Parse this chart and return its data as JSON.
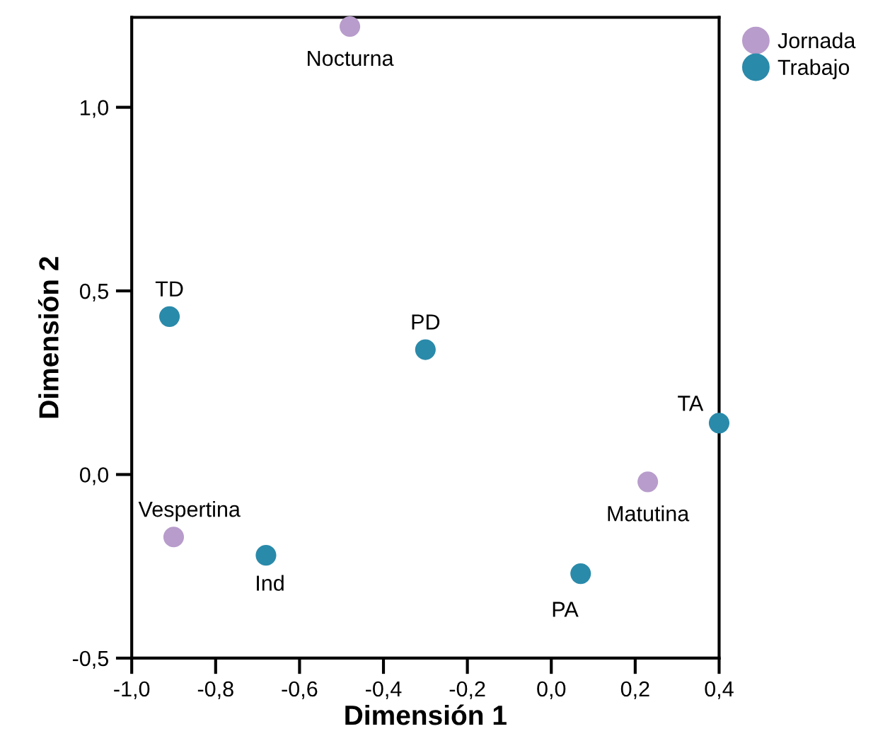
{
  "chart_data": {
    "type": "scatter",
    "xlabel": "Dimensión 1",
    "ylabel": "Dimensión 2",
    "series": [
      {
        "name": "Jornada",
        "color": "#b89ccb",
        "x": [
          -0.48,
          0.23,
          -0.9
        ],
        "values": [
          1.22,
          -0.02,
          -0.17
        ]
      },
      {
        "name": "Trabajo",
        "color": "#2a8aaa",
        "x": [
          -0.91,
          -0.3,
          0.4,
          -0.68,
          0.07
        ],
        "values": [
          0.43,
          0.34,
          0.14,
          -0.22,
          -0.27
        ]
      }
    ],
    "annotations": [
      {
        "text": "Nocturna",
        "x": -0.48,
        "y": 1.22
      },
      {
        "text": "Matutina",
        "x": 0.23,
        "y": -0.02
      },
      {
        "text": "Vespertina",
        "x": -0.9,
        "y": -0.17
      },
      {
        "text": "TD",
        "x": -0.91,
        "y": 0.43
      },
      {
        "text": "PD",
        "x": -0.3,
        "y": 0.34
      },
      {
        "text": "TA",
        "x": 0.4,
        "y": 0.14
      },
      {
        "text": "Ind",
        "x": -0.68,
        "y": -0.22
      },
      {
        "text": "PA",
        "x": 0.07,
        "y": -0.27
      }
    ],
    "xlim": [
      -1.0,
      0.4
    ],
    "ylim": [
      -0.5,
      1.245
    ],
    "xticks": [
      {
        "value": -1.0,
        "label": "-1,0"
      },
      {
        "value": -0.8,
        "label": "-0,8"
      },
      {
        "value": -0.6,
        "label": "-0,6"
      },
      {
        "value": -0.4,
        "label": "-0,4"
      },
      {
        "value": -0.2,
        "label": "-0,2"
      },
      {
        "value": 0.0,
        "label": "0,0"
      },
      {
        "value": 0.2,
        "label": "0,2"
      },
      {
        "value": 0.4,
        "label": "0,4"
      }
    ],
    "yticks": [
      {
        "value": -0.5,
        "label": "-0,5"
      },
      {
        "value": 0.0,
        "label": "0,0"
      },
      {
        "value": 0.5,
        "label": "0,5"
      },
      {
        "value": 1.0,
        "label": "1,0"
      }
    ],
    "grid": false,
    "legend": "top right",
    "marker": "circle"
  }
}
